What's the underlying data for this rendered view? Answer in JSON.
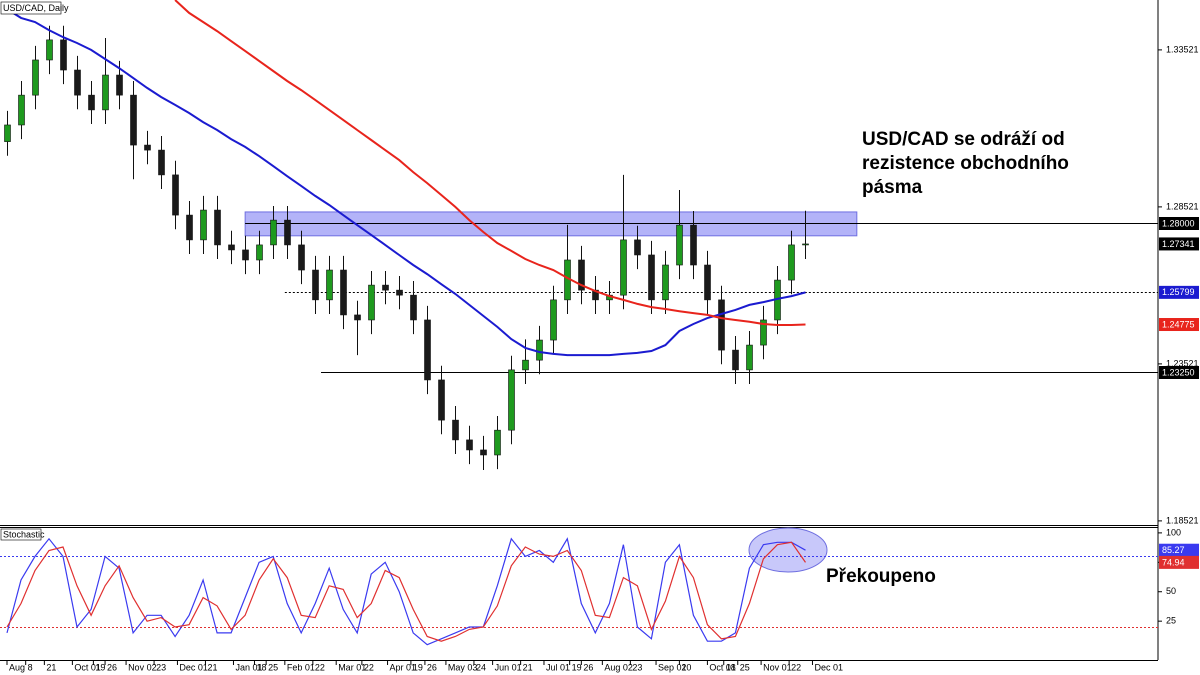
{
  "chart_data": [
    {
      "type": "candlestick",
      "title": "USD/CAD, Daily",
      "x": [
        3,
        9,
        15,
        21,
        27,
        33,
        39,
        45,
        51,
        57,
        63,
        69,
        75,
        81,
        87,
        93,
        99,
        105,
        111,
        117,
        123,
        129,
        135,
        141,
        147,
        153,
        159,
        165,
        171,
        177,
        183,
        189,
        195,
        201,
        207,
        213,
        219,
        225,
        231,
        237,
        243,
        249,
        255,
        261,
        267,
        273,
        279,
        285,
        291,
        297,
        303,
        309,
        315,
        321,
        327,
        333,
        339,
        345
      ],
      "open": [
        1.306,
        1.3113,
        1.3208,
        1.332,
        1.3384,
        1.3288,
        1.3208,
        1.3161,
        1.3272,
        1.3208,
        1.3049,
        1.3033,
        1.2954,
        1.2826,
        1.2747,
        1.2842,
        1.2731,
        1.2715,
        1.2683,
        1.2731,
        1.281,
        1.2731,
        1.2651,
        1.2556,
        1.2651,
        1.2508,
        1.2492,
        1.2603,
        1.2587,
        1.2571,
        1.2492,
        1.2301,
        1.2173,
        1.211,
        1.2078,
        1.2062,
        1.2141,
        1.2333,
        1.2364,
        1.2428,
        1.2556,
        1.2683,
        1.2587,
        1.2556,
        1.2571,
        1.2747,
        1.2699,
        1.2556,
        1.2667,
        1.2794,
        1.2667,
        1.2556,
        1.2396,
        1.2333,
        1.2412,
        1.2492,
        1.2619,
        1.2731
      ],
      "high": [
        1.3158,
        1.3253,
        1.3365,
        1.3429,
        1.3429,
        1.3333,
        1.3253,
        1.339,
        1.3317,
        1.3253,
        1.3094,
        1.3078,
        1.2999,
        1.2871,
        1.2887,
        1.2887,
        1.2776,
        1.276,
        1.2776,
        1.2855,
        1.2855,
        1.2776,
        1.2696,
        1.2696,
        1.2696,
        1.2553,
        1.2648,
        1.2648,
        1.2632,
        1.2616,
        1.2537,
        1.2346,
        1.2218,
        1.2155,
        1.2123,
        1.2186,
        1.2378,
        1.243,
        1.2473,
        1.2601,
        1.2795,
        1.2728,
        1.2632,
        1.2616,
        1.2954,
        1.2792,
        1.2744,
        1.2712,
        1.2906,
        1.2839,
        1.2712,
        1.2601,
        1.2441,
        1.2457,
        1.2537,
        1.2664,
        1.2776,
        1.284
      ],
      "low": [
        1.3015,
        1.3068,
        1.3163,
        1.3275,
        1.3243,
        1.3163,
        1.3116,
        1.3116,
        1.3163,
        1.294,
        1.2988,
        1.2909,
        1.2781,
        1.2702,
        1.2702,
        1.2686,
        1.267,
        1.2638,
        1.2638,
        1.2686,
        1.2686,
        1.2606,
        1.2511,
        1.2511,
        1.2463,
        1.238,
        1.2447,
        1.2542,
        1.2526,
        1.2447,
        1.2256,
        1.2128,
        1.2065,
        1.2033,
        1.2014,
        1.2017,
        1.2096,
        1.2288,
        1.2319,
        1.2383,
        1.2511,
        1.2542,
        1.2511,
        1.2511,
        1.2526,
        1.2654,
        1.2511,
        1.2511,
        1.2622,
        1.2622,
        1.2511,
        1.2351,
        1.2288,
        1.2288,
        1.2367,
        1.2447,
        1.2574,
        1.2686
      ],
      "close": [
        1.3113,
        1.3208,
        1.332,
        1.3384,
        1.3288,
        1.3208,
        1.3161,
        1.3272,
        1.3208,
        1.3049,
        1.3033,
        1.2954,
        1.2826,
        1.2747,
        1.2842,
        1.2731,
        1.2715,
        1.2683,
        1.2731,
        1.281,
        1.2731,
        1.2651,
        1.2556,
        1.2651,
        1.2508,
        1.2492,
        1.2603,
        1.2587,
        1.2571,
        1.2492,
        1.2301,
        1.2173,
        1.211,
        1.2078,
        1.2062,
        1.2141,
        1.2333,
        1.2364,
        1.2428,
        1.2556,
        1.2683,
        1.2587,
        1.2556,
        1.2571,
        1.2747,
        1.2699,
        1.2556,
        1.2667,
        1.2794,
        1.2667,
        1.2556,
        1.2396,
        1.2333,
        1.2412,
        1.2492,
        1.2619,
        1.2731,
        1.27341
      ],
      "up_color": "#1e9a1e",
      "down_color": "#1a1a1a",
      "last_color": "#000000",
      "series": [
        {
          "color": "#1b1bd0",
          "values": [
            1.3482,
            1.3454,
            1.3441,
            1.3415,
            1.3393,
            1.3374,
            1.3352,
            1.3323,
            1.3294,
            1.3263,
            1.3231,
            1.3202,
            1.3177,
            1.3151,
            1.3122,
            1.3097,
            1.3068,
            1.3043,
            1.3014,
            1.2982,
            1.295,
            1.2919,
            1.2887,
            1.2858,
            1.2826,
            1.2794,
            1.2763,
            1.2731,
            1.2699,
            1.2667,
            1.2638,
            1.2606,
            1.2575,
            1.254,
            1.2505,
            1.247,
            1.2431,
            1.2403,
            1.239,
            1.2384,
            1.238,
            1.238,
            1.238,
            1.238,
            1.2384,
            1.2387,
            1.2393,
            1.2412,
            1.2457,
            1.2479,
            1.2498,
            1.2511,
            1.2524,
            1.254,
            1.2549,
            1.2559,
            1.2568,
            1.25799
          ]
        },
        {
          "color": "#e8241c",
          "values": [
            null,
            null,
            null,
            null,
            null,
            null,
            null,
            null,
            null,
            null,
            null,
            null,
            1.3511,
            1.347,
            1.3441,
            1.3412,
            1.338,
            1.3349,
            1.3317,
            1.3285,
            1.3253,
            1.3224,
            1.3193,
            1.3161,
            1.3129,
            1.3097,
            1.3065,
            1.3033,
            1.3001,
            1.2963,
            1.2928,
            1.289,
            1.2852,
            1.281,
            1.2772,
            1.2737,
            1.2712,
            1.2686,
            1.2667,
            1.2651,
            1.2626,
            1.2603,
            1.2584,
            1.2568,
            1.2556,
            1.2543,
            1.2533,
            1.2527,
            1.252,
            1.2514,
            1.2508,
            1.2498,
            1.2492,
            1.2486,
            1.2479,
            1.2476,
            1.2476,
            1.24775
          ]
        }
      ],
      "xlim": [
        0,
        496
      ],
      "ylim": [
        1.1839,
        1.3511
      ],
      "yticks": [
        1.33521,
        1.28521,
        1.23521,
        1.18521
      ],
      "zone": {
        "x": [
          105,
          367
        ],
        "y": [
          1.276,
          1.2836
        ],
        "color": "#9a9af5"
      },
      "levels": [
        {
          "value": 1.28,
          "label": "1.28000",
          "from": 105,
          "style": "solid"
        },
        {
          "value": 1.258,
          "from": 122,
          "style": "dotted"
        },
        {
          "value": 1.2325,
          "label": "1.23250",
          "from": 137.5,
          "style": "solid"
        }
      ],
      "note": [
        "USD/CAD se odráží od",
        "rezistence obchodního",
        "pásma"
      ]
    },
    {
      "type": "line",
      "title": "Stochastic",
      "x": [
        3,
        9,
        15,
        21,
        27,
        33,
        39,
        45,
        51,
        57,
        63,
        69,
        75,
        81,
        87,
        93,
        99,
        105,
        111,
        117,
        123,
        129,
        135,
        141,
        147,
        153,
        159,
        165,
        171,
        177,
        183,
        189,
        195,
        201,
        207,
        213,
        219,
        225,
        231,
        237,
        243,
        249,
        255,
        261,
        267,
        273,
        279,
        285,
        291,
        297,
        303,
        309,
        315,
        321,
        327,
        333,
        339,
        345
      ],
      "series": [
        {
          "color": "#3a3af0",
          "values": [
            15,
            60,
            80,
            95,
            80,
            20,
            35,
            80,
            70,
            15,
            30,
            30,
            12,
            30,
            60,
            15,
            15,
            45,
            75,
            80,
            40,
            15,
            40,
            70,
            35,
            15,
            65,
            75,
            50,
            15,
            5,
            10,
            15,
            20,
            20,
            55,
            95,
            80,
            85,
            75,
            95,
            40,
            15,
            40,
            90,
            20,
            10,
            75,
            90,
            30,
            8,
            8,
            15,
            70,
            90,
            92,
            92,
            85.27
          ]
        },
        {
          "color": "#e03030",
          "values": [
            20,
            40,
            68,
            85,
            88,
            55,
            30,
            55,
            72,
            45,
            25,
            28,
            20,
            22,
            45,
            38,
            18,
            30,
            60,
            78,
            62,
            30,
            28,
            55,
            52,
            28,
            40,
            68,
            62,
            35,
            12,
            8,
            12,
            18,
            20,
            38,
            72,
            88,
            82,
            80,
            85,
            68,
            30,
            28,
            62,
            55,
            18,
            42,
            80,
            62,
            22,
            10,
            12,
            40,
            78,
            90,
            92,
            74.94
          ]
        }
      ],
      "xlim": [
        0,
        496
      ],
      "ylim": [
        -8,
        105
      ],
      "yticks": [
        25,
        50,
        75,
        100
      ],
      "levels": [
        {
          "value": 80,
          "color": "#3a3af0"
        },
        {
          "value": 20,
          "color": "#e03030"
        }
      ],
      "xticks": [
        {
          "value": 3,
          "label": "Aug"
        },
        {
          "value": 11,
          "label": "8"
        },
        {
          "value": 19,
          "label": "21"
        },
        {
          "value": 31,
          "label": "Oct 01"
        },
        {
          "value": 40,
          "label": "19"
        },
        {
          "value": 45,
          "label": "26"
        },
        {
          "value": 54,
          "label": "Nov 02"
        },
        {
          "value": 66,
          "label": "23"
        },
        {
          "value": 76,
          "label": "Dec 01"
        },
        {
          "value": 88,
          "label": "21"
        },
        {
          "value": 100,
          "label": "Jan 01"
        },
        {
          "value": 109,
          "label": "18"
        },
        {
          "value": 114,
          "label": "25"
        },
        {
          "value": 122,
          "label": "Feb 01"
        },
        {
          "value": 134,
          "label": "22"
        },
        {
          "value": 144,
          "label": "Mar 01"
        },
        {
          "value": 155,
          "label": "22"
        },
        {
          "value": 166,
          "label": "Apr 01"
        },
        {
          "value": 176,
          "label": "19"
        },
        {
          "value": 182,
          "label": "26"
        },
        {
          "value": 191,
          "label": "May 03"
        },
        {
          "value": 203,
          "label": "24"
        },
        {
          "value": 211,
          "label": "Jun 01"
        },
        {
          "value": 223,
          "label": "21"
        },
        {
          "value": 233,
          "label": "Jul 01"
        },
        {
          "value": 244,
          "label": "19"
        },
        {
          "value": 249,
          "label": "26"
        },
        {
          "value": 258,
          "label": "Aug 02"
        },
        {
          "value": 270,
          "label": "23"
        },
        {
          "value": 281,
          "label": "Sep 01"
        },
        {
          "value": 291,
          "label": "20"
        },
        {
          "value": 303,
          "label": "Oct 01"
        },
        {
          "value": 310,
          "label": "18"
        },
        {
          "value": 316,
          "label": "25"
        },
        {
          "value": 326,
          "label": "Nov 01"
        },
        {
          "value": 338,
          "label": "22"
        },
        {
          "value": 348,
          "label": "Dec 01"
        }
      ],
      "note": "Překoupeno"
    }
  ]
}
